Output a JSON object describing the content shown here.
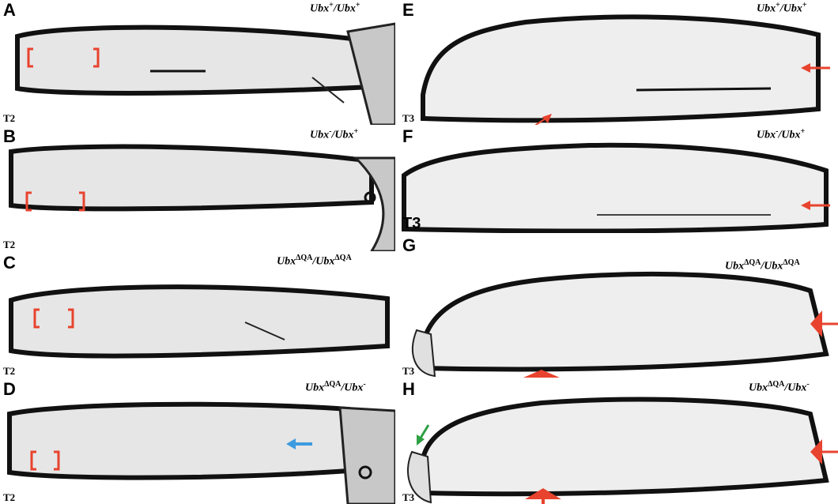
{
  "panels": [
    {
      "letter": "A",
      "geno_a": "Ubx",
      "sup_a": "+",
      "geno_b": "/Ubx",
      "sup_b": "+",
      "segment": "T2"
    },
    {
      "letter": "B",
      "geno_a": "Ubx",
      "sup_a": "-",
      "geno_b": "/Ubx",
      "sup_b": "+",
      "segment": "T2"
    },
    {
      "letter": "C",
      "geno_a": "Ubx",
      "sup_a": "ΔQA",
      "geno_b": "/Ubx",
      "sup_b": "ΔQA",
      "segment": "T2"
    },
    {
      "letter": "D",
      "geno_a": "Ubx",
      "sup_a": "ΔQA",
      "geno_b": "/Ubx",
      "sup_b": "-",
      "segment": "T2"
    },
    {
      "letter": "E",
      "geno_a": "Ubx",
      "sup_a": "+",
      "geno_b": "/Ubx",
      "sup_b": "+",
      "segment": "T3"
    },
    {
      "letter": "F",
      "geno_a": "Ubx",
      "sup_a": "-",
      "geno_b": "/Ubx",
      "sup_b": "+",
      "segment": "T3"
    },
    {
      "letter": "G",
      "geno_a": "Ubx",
      "sup_a": "ΔQA",
      "geno_b": "/Ubx",
      "sup_b": "ΔQA",
      "segment": "T3"
    },
    {
      "letter": "H",
      "geno_a": "Ubx",
      "sup_a": "ΔQA",
      "geno_b": "/Ubx",
      "sup_b": "-",
      "segment": "T3"
    }
  ],
  "colors": {
    "bracket": "#e8432e",
    "arrow_red": "#e8432e",
    "arrow_blue": "#3d9be0",
    "arrow_green": "#2ea043"
  }
}
